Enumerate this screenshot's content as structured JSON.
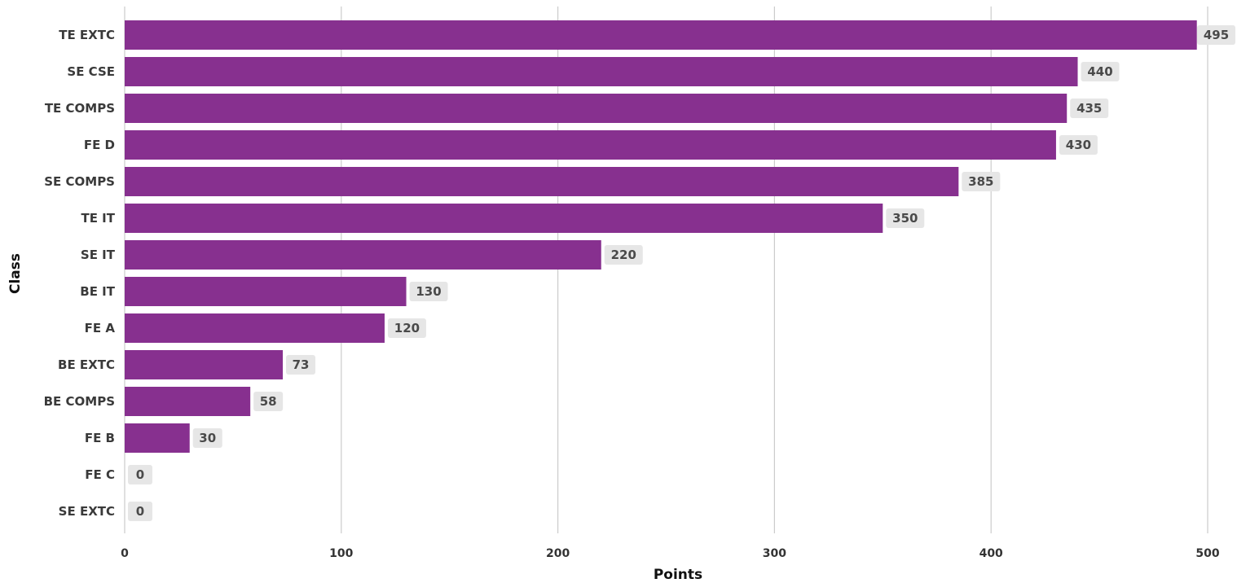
{
  "chart_data": {
    "type": "bar",
    "orientation": "horizontal",
    "title": "",
    "xlabel": "Points",
    "ylabel": "Class",
    "categories": [
      "TE EXTC",
      "SE CSE",
      "TE COMPS",
      "FE D",
      "SE COMPS",
      "TE IT",
      "SE IT",
      "BE IT",
      "FE A",
      "BE EXTC",
      "BE COMPS",
      "FE B",
      "FE C",
      "SE EXTC"
    ],
    "values": [
      495,
      440,
      435,
      430,
      385,
      350,
      220,
      130,
      120,
      73,
      58,
      30,
      0,
      0
    ],
    "xlim": [
      0,
      500
    ],
    "xticks": [
      0,
      100,
      200,
      300,
      400,
      500
    ],
    "grid": "vertical",
    "bar_color": "#87308f",
    "data_labels": true
  }
}
